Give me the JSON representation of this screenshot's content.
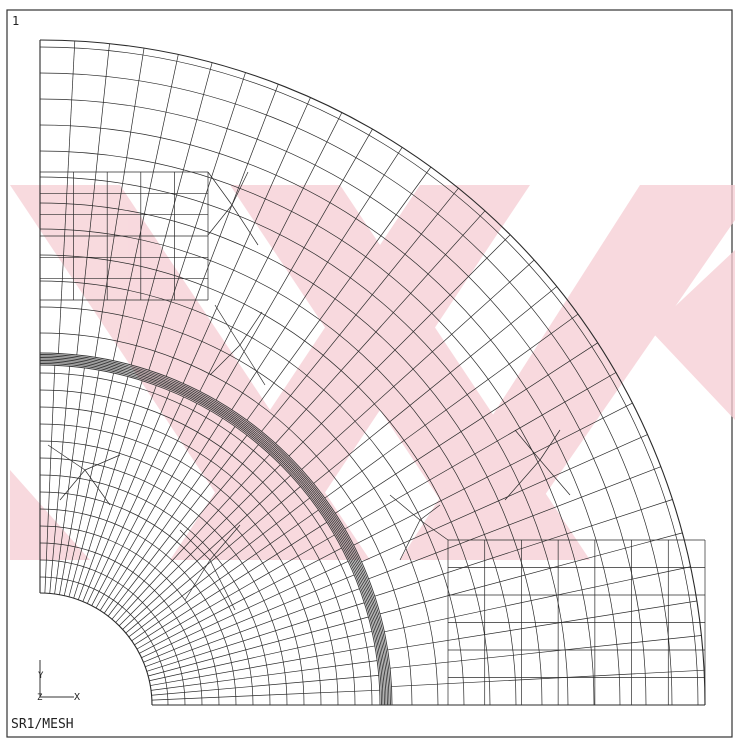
{
  "window_number": "1",
  "plot_title": "SR1/MESH",
  "triad": {
    "y_label": "Y",
    "z_label": "Z",
    "x_label": "X"
  },
  "colors": {
    "mesh": "#2a2a2a",
    "background": "#ffffff",
    "watermark": "#f2c3cb",
    "interface_band": "#3a3a3a"
  }
}
